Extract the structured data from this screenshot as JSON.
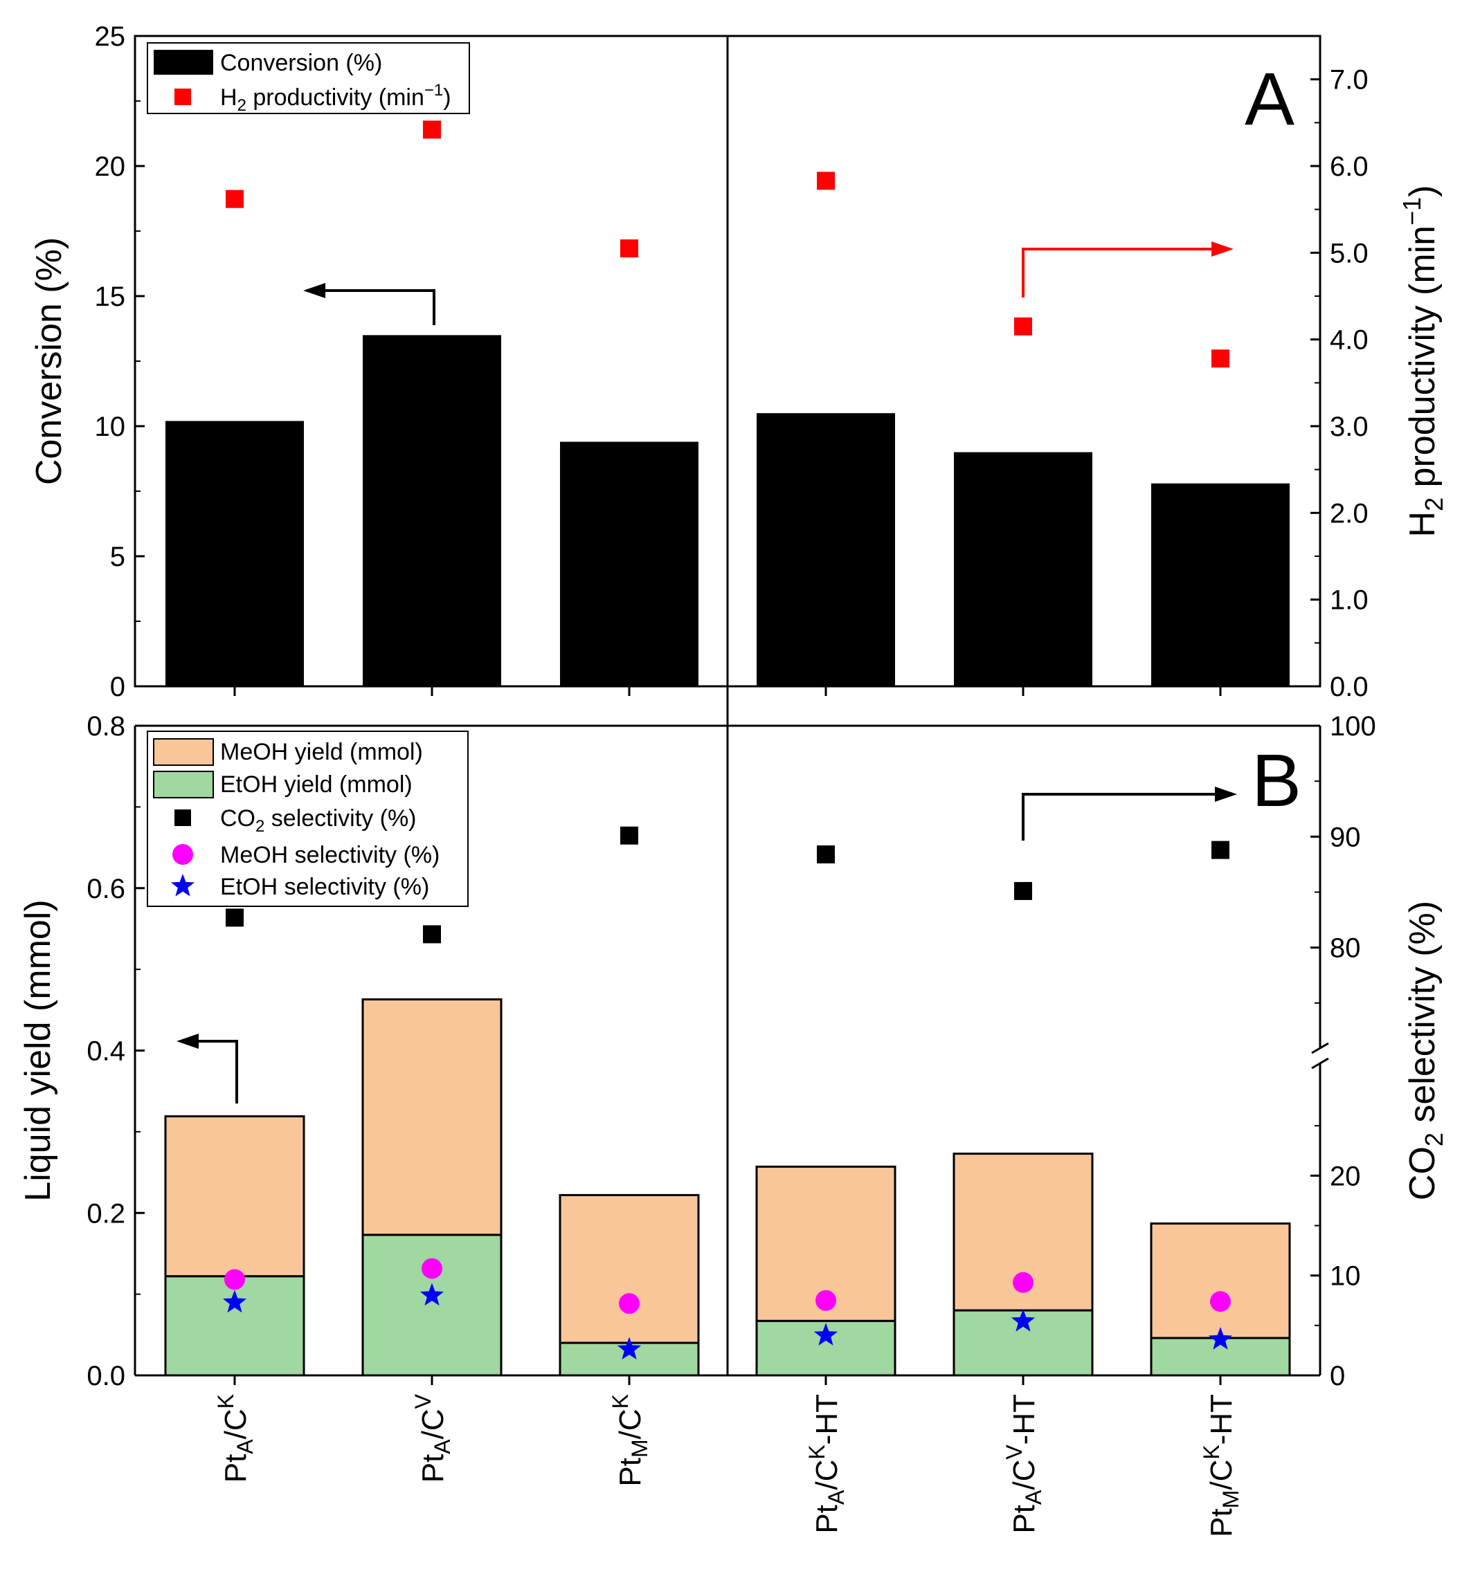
{
  "chart_data": [
    {
      "panel": "A",
      "type": "bar",
      "panel_label": "A",
      "categories": [
        "PtA/CK",
        "PtA/CV",
        "PtM/CK",
        "PtA/CK-HT",
        "PtA/CV-HT",
        "PtM/CK-HT"
      ],
      "ylabel": "Conversion (%)",
      "ylim": [
        0,
        25
      ],
      "yticks": [
        0,
        5,
        10,
        15,
        20,
        25
      ],
      "y2label": "H2 productivity (min-1)",
      "y2lim": [
        0,
        7.5
      ],
      "y2ticks": [
        "0.0",
        "1.0",
        "2.0",
        "3.0",
        "4.0",
        "5.0",
        "6.0",
        "7.0"
      ],
      "series": [
        {
          "name": "Conversion (%)",
          "kind": "bar",
          "axis": "left",
          "color": "#000000",
          "values": [
            10.2,
            13.5,
            9.4,
            10.5,
            9.0,
            7.8
          ]
        },
        {
          "name": "H2 productivity (min-1)",
          "kind": "scatter",
          "marker": "square",
          "axis": "right",
          "color": "#ff0000",
          "values": [
            5.62,
            6.42,
            5.05,
            5.83,
            4.15,
            3.78
          ]
        }
      ],
      "legend": {
        "placement": "top-left",
        "entries": [
          {
            "label": "Conversion (%)"
          },
          {
            "label": "H",
            "sub": "2",
            "rest": " productivity (min",
            "sup": "−1",
            "end": ")"
          }
        ]
      }
    },
    {
      "panel": "B",
      "type": "bar",
      "panel_label": "B",
      "categories": [
        "PtA/CK",
        "PtA/CV",
        "PtM/CK",
        "PtA/CK-HT",
        "PtA/CV-HT",
        "PtM/CK-HT"
      ],
      "ylabel": "Liquid yield (mmol)",
      "ylim": [
        0,
        0.8
      ],
      "yticks": [
        "0.0",
        "0.2",
        "0.4",
        "0.6",
        "0.8"
      ],
      "y2label": "CO2 selectivity (%)",
      "y2_broken_axis": {
        "lower": [
          0,
          30
        ],
        "upper": [
          70,
          100
        ]
      },
      "y2ticks_lower": [
        0,
        10,
        20
      ],
      "y2ticks_upper": [
        80,
        90,
        100
      ],
      "series": [
        {
          "name": "EtOH yield (mmol)",
          "kind": "stacked-bar",
          "axis": "left",
          "color": "#9fd8a0",
          "values": [
            0.122,
            0.173,
            0.04,
            0.067,
            0.08,
            0.046
          ]
        },
        {
          "name": "MeOH yield (mmol)",
          "kind": "stacked-bar",
          "axis": "left",
          "color": "#f9c699",
          "values": [
            0.197,
            0.29,
            0.182,
            0.19,
            0.193,
            0.141
          ]
        },
        {
          "name": "CO2 selectivity (%)",
          "kind": "scatter",
          "marker": "square",
          "axis": "right",
          "color": "#000000",
          "values": [
            82.7,
            81.2,
            90.1,
            88.4,
            85.1,
            88.8
          ]
        },
        {
          "name": "MeOH selectivity (%)",
          "kind": "scatter",
          "marker": "circle",
          "axis": "right",
          "color": "#ff00ff",
          "values": [
            9.6,
            10.7,
            7.2,
            7.5,
            9.3,
            7.4
          ]
        },
        {
          "name": "EtOH selectivity (%)",
          "kind": "scatter",
          "marker": "star",
          "axis": "right",
          "color": "#0000ff",
          "values": [
            7.3,
            8.0,
            2.6,
            4.0,
            5.4,
            3.6
          ]
        }
      ],
      "legend": {
        "placement": "top-left",
        "entries": [
          {
            "label": "MeOH yield (mmol)"
          },
          {
            "label": "EtOH yield (mmol)"
          },
          {
            "label": "CO",
            "sub": "2",
            "rest": " selectivity (%)"
          },
          {
            "label": "MeOH selectivity (%)"
          },
          {
            "label": "EtOH selectivity (%)"
          }
        ]
      }
    }
  ],
  "x_tick_labels": [
    {
      "base": "Pt",
      "sub": "A",
      "mid": "/C",
      "sup": "K",
      "suffix": ""
    },
    {
      "base": "Pt",
      "sub": "A",
      "mid": "/C",
      "sup": "V",
      "suffix": ""
    },
    {
      "base": "Pt",
      "sub": "M",
      "mid": "/C",
      "sup": "K",
      "suffix": ""
    },
    {
      "base": "Pt",
      "sub": "A",
      "mid": "/C",
      "sup": "K",
      "suffix": "-HT"
    },
    {
      "base": "Pt",
      "sub": "A",
      "mid": "/C",
      "sup": "V",
      "suffix": "-HT"
    },
    {
      "base": "Pt",
      "sub": "M",
      "mid": "/C",
      "sup": "K",
      "suffix": "-HT"
    }
  ],
  "axis_titles": {
    "a_left": "Conversion (%)",
    "a_right": {
      "base": "H",
      "sub": "2",
      "rest": " productivity (min",
      "sup": "−1",
      "end": ")"
    },
    "b_left": "Liquid yield (mmol)",
    "b_right": {
      "base": "CO",
      "sub": "2",
      "rest": " selectivity (%)"
    }
  }
}
